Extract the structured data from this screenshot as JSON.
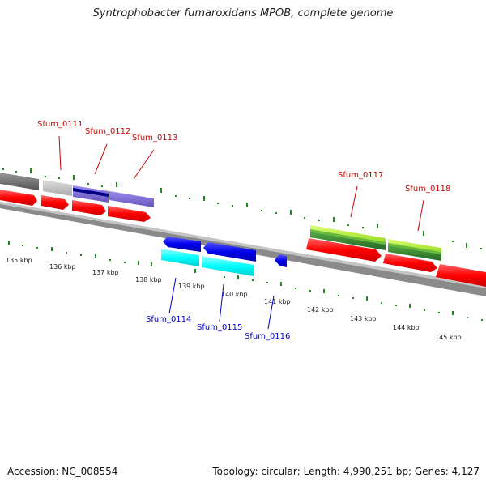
{
  "title": "Syntrophobacter fumaroxidans MPOB, complete genome",
  "footer": {
    "accession_prefix": "Accession:",
    "accession_value": "NC_008554",
    "topology_label": "Topology:",
    "topology_value": "circular",
    "length_label": "Length:",
    "length_value": "4,990,251 bp",
    "genes_label": "Genes:",
    "genes_value": "4,127",
    "accession_text": "Accession: NC_008554",
    "summary_text": "Topology: circular; Length: 4,990,251 bp; Genes: 4,127"
  },
  "gene_labels": [
    {
      "id": "g0111",
      "text": "Sfum_0111",
      "strand": "forward"
    },
    {
      "id": "g0112",
      "text": "Sfum_0112",
      "strand": "forward"
    },
    {
      "id": "g0113",
      "text": "Sfum_0113",
      "strand": "forward"
    },
    {
      "id": "g0114",
      "text": "Sfum_0114",
      "strand": "reverse"
    },
    {
      "id": "g0115",
      "text": "Sfum_0115",
      "strand": "reverse"
    },
    {
      "id": "g0116",
      "text": "Sfum_0116",
      "strand": "reverse"
    },
    {
      "id": "g0117",
      "text": "Sfum_0117",
      "strand": "forward"
    },
    {
      "id": "g0118",
      "text": "Sfum_0118",
      "strand": "forward"
    }
  ],
  "tick_labels": [
    "135 kbp",
    "136 kbp",
    "137 kbp",
    "138 kbp",
    "139 kbp",
    "140 kbp",
    "141 kbp",
    "142 kbp",
    "143 kbp",
    "144 kbp",
    "145 kbp"
  ],
  "colors": {
    "forward_label": "#cc0000",
    "reverse_label": "#0000cc",
    "cds_red": "#ff0000",
    "backbone_gray": "#888888",
    "tick_green": "#228822",
    "gene_blue": "#0000ee",
    "gene_cyan": "#00ffff",
    "gene_lime": "#aaee22",
    "gene_green": "#338833",
    "gene_purple": "#7766cc",
    "gene_navy": "#000088",
    "gene_gray": "#bbbbbb",
    "gene_dark_gray": "#666666"
  }
}
